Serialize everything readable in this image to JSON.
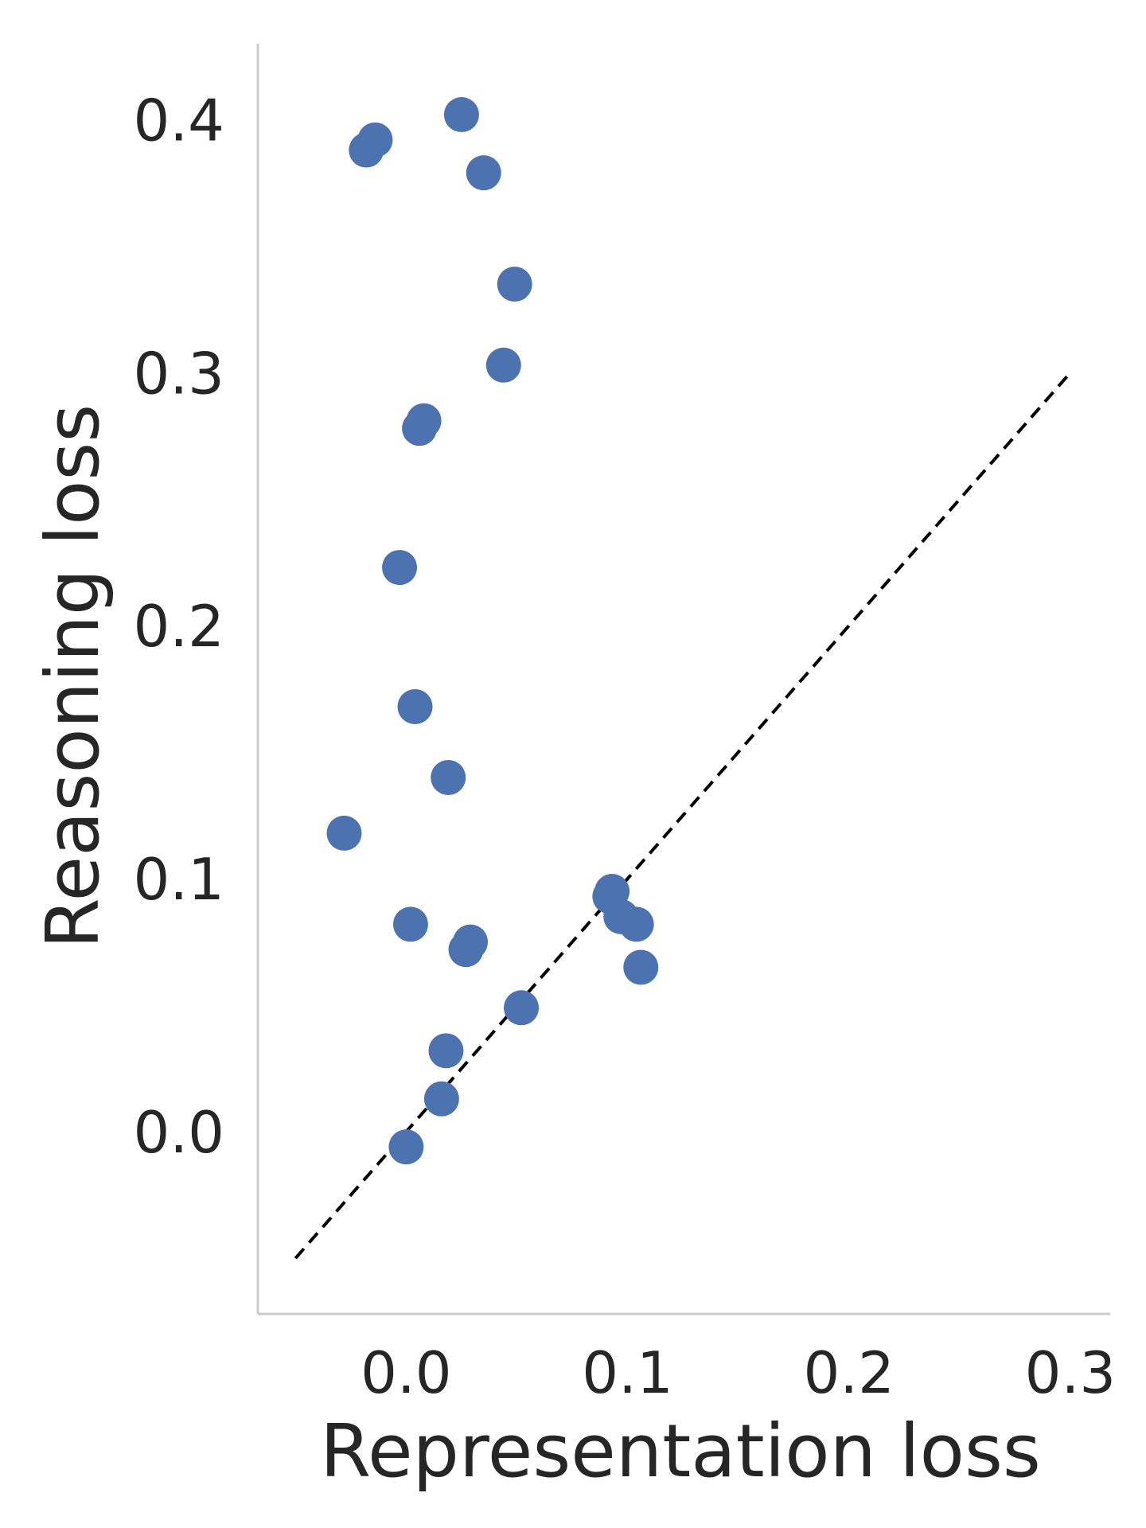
{
  "chart_data": {
    "type": "scatter",
    "xlabel": "Representation loss",
    "ylabel": "Reasoning loss",
    "xlim": [
      -0.067,
      0.318
    ],
    "ylim": [
      -0.072,
      0.43
    ],
    "xticks": [
      0.0,
      0.1,
      0.2,
      0.3
    ],
    "yticks": [
      0.0,
      0.1,
      0.2,
      0.3,
      0.4
    ],
    "tick_labels_x": [
      "0.0",
      "0.1",
      "0.2",
      "0.3"
    ],
    "tick_labels_y": [
      "0.0",
      "0.1",
      "0.2",
      "0.3",
      "0.4"
    ],
    "grid": false,
    "marker_color": "#4c72b0",
    "reference_line": {
      "style": "dashed",
      "color": "#000000",
      "from": [
        -0.05,
        -0.05
      ],
      "to": [
        0.3,
        0.3
      ]
    },
    "points": [
      {
        "x": -0.014,
        "y": 0.392
      },
      {
        "x": -0.018,
        "y": 0.388
      },
      {
        "x": 0.025,
        "y": 0.402
      },
      {
        "x": 0.035,
        "y": 0.379
      },
      {
        "x": 0.049,
        "y": 0.335
      },
      {
        "x": 0.044,
        "y": 0.303
      },
      {
        "x": 0.008,
        "y": 0.281
      },
      {
        "x": 0.006,
        "y": 0.278
      },
      {
        "x": -0.003,
        "y": 0.223
      },
      {
        "x": 0.004,
        "y": 0.168
      },
      {
        "x": 0.019,
        "y": 0.14
      },
      {
        "x": -0.028,
        "y": 0.118
      },
      {
        "x": 0.002,
        "y": 0.082
      },
      {
        "x": 0.093,
        "y": 0.095
      },
      {
        "x": 0.092,
        "y": 0.093
      },
      {
        "x": 0.097,
        "y": 0.085
      },
      {
        "x": 0.104,
        "y": 0.082
      },
      {
        "x": 0.106,
        "y": 0.065
      },
      {
        "x": 0.029,
        "y": 0.075
      },
      {
        "x": 0.027,
        "y": 0.072
      },
      {
        "x": 0.052,
        "y": 0.049
      },
      {
        "x": 0.018,
        "y": 0.032
      },
      {
        "x": 0.016,
        "y": 0.013
      },
      {
        "x": 0.0,
        "y": -0.006
      }
    ]
  }
}
